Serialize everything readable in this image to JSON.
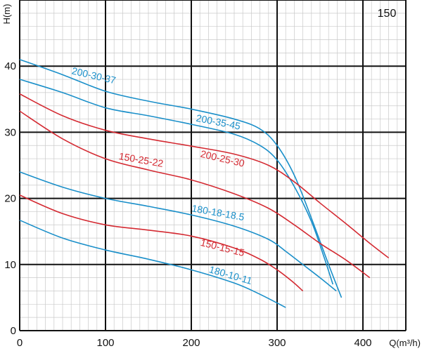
{
  "chart_data": {
    "type": "line",
    "corner_label": "150",
    "xlabel": "Q(m³/h)",
    "ylabel": "H(m)",
    "xlim": [
      0,
      450
    ],
    "ylim": [
      0,
      50
    ],
    "x_ticks": [
      0,
      100,
      200,
      300,
      400
    ],
    "y_ticks": [
      0,
      10,
      20,
      30,
      40
    ],
    "grid": true,
    "series": [
      {
        "name": "200-30-37",
        "color": "#1a8fc9",
        "points": [
          [
            0,
            41
          ],
          [
            50,
            38.7
          ],
          [
            100,
            36.2
          ],
          [
            150,
            34.7
          ],
          [
            200,
            33.5
          ],
          [
            250,
            32
          ],
          [
            280,
            30.5
          ],
          [
            300,
            28
          ],
          [
            320,
            23.5
          ],
          [
            340,
            17
          ],
          [
            360,
            10
          ],
          [
            375,
            5
          ]
        ]
      },
      {
        "name": "200-35-45",
        "color": "#1a8fc9",
        "points": [
          [
            0,
            38
          ],
          [
            50,
            36
          ],
          [
            100,
            33.7
          ],
          [
            150,
            32.5
          ],
          [
            200,
            31.2
          ],
          [
            250,
            29.7
          ],
          [
            280,
            28
          ],
          [
            300,
            25.8
          ],
          [
            320,
            21.8
          ],
          [
            340,
            16.5
          ],
          [
            355,
            11
          ],
          [
            365,
            7
          ]
        ]
      },
      {
        "name": "200-25-30",
        "color": "#d42a32",
        "points": [
          [
            0,
            35.8
          ],
          [
            50,
            32.5
          ],
          [
            100,
            30.3
          ],
          [
            150,
            29
          ],
          [
            200,
            27.9
          ],
          [
            250,
            26.7
          ],
          [
            290,
            25
          ],
          [
            320,
            22.5
          ],
          [
            350,
            19.3
          ],
          [
            380,
            16.2
          ],
          [
            410,
            13
          ],
          [
            430,
            11
          ]
        ]
      },
      {
        "name": "150-25-22",
        "color": "#d42a32",
        "points": [
          [
            0,
            33.2
          ],
          [
            50,
            29
          ],
          [
            100,
            26
          ],
          [
            150,
            24.3
          ],
          [
            200,
            22.8
          ],
          [
            250,
            20.7
          ],
          [
            290,
            18.5
          ],
          [
            320,
            16
          ],
          [
            350,
            13.2
          ],
          [
            380,
            10.7
          ],
          [
            408,
            8
          ]
        ]
      },
      {
        "name": "180-18-18.5",
        "color": "#1a8fc9",
        "points": [
          [
            0,
            24
          ],
          [
            50,
            21.7
          ],
          [
            100,
            20
          ],
          [
            150,
            18.8
          ],
          [
            200,
            17.5
          ],
          [
            250,
            15.8
          ],
          [
            290,
            13.8
          ],
          [
            310,
            12
          ],
          [
            330,
            10
          ],
          [
            350,
            8
          ],
          [
            369,
            6
          ]
        ]
      },
      {
        "name": "150-15-15",
        "color": "#d42a32",
        "points": [
          [
            0,
            20.5
          ],
          [
            50,
            17.7
          ],
          [
            100,
            16
          ],
          [
            150,
            15.2
          ],
          [
            200,
            14.3
          ],
          [
            250,
            12.5
          ],
          [
            280,
            10.8
          ],
          [
            300,
            9.2
          ],
          [
            318,
            7.4
          ],
          [
            330,
            6
          ]
        ]
      },
      {
        "name": "180-10-11",
        "color": "#1a8fc9",
        "points": [
          [
            0,
            16.7
          ],
          [
            50,
            14
          ],
          [
            100,
            12.2
          ],
          [
            150,
            10.8
          ],
          [
            200,
            9.2
          ],
          [
            250,
            7.2
          ],
          [
            280,
            5.5
          ],
          [
            310,
            3.5
          ]
        ]
      }
    ]
  }
}
